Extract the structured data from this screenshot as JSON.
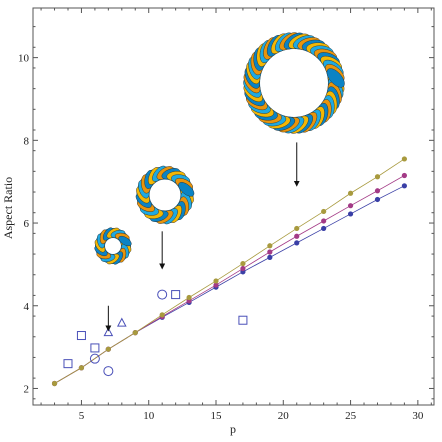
{
  "chart_data": {
    "type": "scatter",
    "xlabel": "p",
    "ylabel": "Aspect Ratio",
    "xlim": [
      1.4,
      31.2
    ],
    "ylim": [
      1.6,
      11.2
    ],
    "x_ticks": [
      5,
      10,
      15,
      20,
      25,
      30
    ],
    "y_ticks": [
      2,
      4,
      6,
      8,
      10
    ],
    "grid": false,
    "series": [
      {
        "color": "#3a3fa6",
        "marker": "dot-line",
        "x": [
          3,
          5,
          7,
          9,
          11,
          13,
          15,
          17,
          19,
          21,
          23,
          25,
          27,
          29
        ],
        "y": [
          2.12,
          2.5,
          2.95,
          3.35,
          3.72,
          4.08,
          4.45,
          4.82,
          5.17,
          5.52,
          5.87,
          6.22,
          6.57,
          6.9
        ]
      },
      {
        "color": "#a33a86",
        "marker": "dot-line",
        "x": [
          3,
          5,
          7,
          9,
          11,
          13,
          15,
          17,
          19,
          21,
          23,
          25,
          27,
          29
        ],
        "y": [
          2.12,
          2.5,
          2.95,
          3.35,
          3.74,
          4.12,
          4.5,
          4.9,
          5.3,
          5.68,
          6.05,
          6.42,
          6.78,
          7.15
        ]
      },
      {
        "color": "#a89a3e",
        "marker": "dot-line",
        "x": [
          3,
          5,
          7,
          9,
          11,
          13,
          15,
          17,
          19,
          21,
          23,
          25,
          27,
          29
        ],
        "y": [
          2.12,
          2.5,
          2.95,
          3.35,
          3.78,
          4.2,
          4.6,
          5.02,
          5.45,
          5.87,
          6.28,
          6.72,
          7.12,
          7.55
        ]
      },
      {
        "color": "#4a50b8",
        "marker": "square",
        "x": [
          4,
          5,
          6,
          12,
          17
        ],
        "y": [
          2.6,
          3.28,
          2.98,
          4.27,
          3.65
        ]
      },
      {
        "color": "#4a50b8",
        "marker": "circle",
        "x": [
          6,
          7,
          11
        ],
        "y": [
          2.72,
          2.42,
          4.27
        ]
      },
      {
        "color": "#4a50b8",
        "marker": "triangle",
        "x": [
          7,
          8
        ],
        "y": [
          3.35,
          3.58
        ]
      }
    ],
    "annotations": [
      {
        "type": "arrow",
        "x": 7,
        "y_from": 4.0,
        "y_to": 3.45
      },
      {
        "type": "arrow",
        "x": 11,
        "y_from": 5.8,
        "y_to": 4.95
      },
      {
        "type": "arrow",
        "x": 21,
        "y_from": 7.95,
        "y_to": 6.95
      }
    ],
    "insets": [
      {
        "name": "small-twisted-ring",
        "strands": 8
      },
      {
        "name": "medium-twisted-ring",
        "strands": 12
      },
      {
        "name": "large-twisted-ring",
        "strands": 26
      }
    ]
  }
}
